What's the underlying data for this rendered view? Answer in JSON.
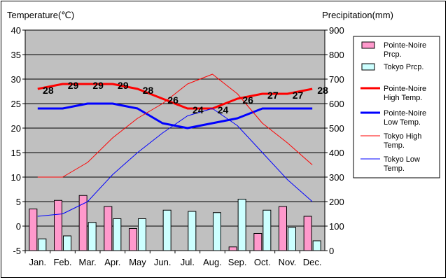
{
  "chart_data": {
    "type": "bar+line",
    "left_axis_title": "Temperature(℃)",
    "right_axis_title": "Precipitation(mm)",
    "categories": [
      "Jan.",
      "Feb.",
      "Mar.",
      "Apr.",
      "May",
      "Jun.",
      "Jul.",
      "Aug.",
      "Sep.",
      "Oct.",
      "Nov.",
      "Dec."
    ],
    "temperature_axis": {
      "min": -5,
      "max": 40,
      "ticks": [
        "-5",
        "0",
        "5",
        "10",
        "15",
        "20",
        "25",
        "30",
        "35",
        "40"
      ]
    },
    "precipitation_axis": {
      "min": 0,
      "max": 900,
      "ticks": [
        "0",
        "100",
        "200",
        "300",
        "400",
        "500",
        "600",
        "700",
        "800",
        "900"
      ]
    },
    "grid": true,
    "legend_position": "right",
    "series": [
      {
        "name": "Pointe-Noire Prcp.",
        "kind": "bar",
        "axis": "right",
        "color": "#ff99cc",
        "values": [
          170,
          205,
          225,
          180,
          90,
          0,
          0,
          0,
          15,
          70,
          180,
          140
        ]
      },
      {
        "name": "Tokyo Prcp.",
        "kind": "bar",
        "axis": "right",
        "color": "#ccffff",
        "values": [
          48,
          60,
          115,
          130,
          130,
          165,
          160,
          155,
          210,
          165,
          95,
          40
        ]
      },
      {
        "name": "Pointe-Noire High Temp.",
        "kind": "line",
        "axis": "left",
        "color": "#ff0000",
        "width": 3,
        "values": [
          28,
          29,
          29,
          29,
          28,
          26,
          24,
          24,
          26,
          27,
          27,
          28
        ]
      },
      {
        "name": "Pointe-Noire Low Temp.",
        "kind": "line",
        "axis": "left",
        "color": "#0000ff",
        "width": 3,
        "values": [
          24,
          24,
          25,
          25,
          24,
          21,
          20,
          21,
          22,
          24,
          24,
          24
        ]
      },
      {
        "name": "Tokyo High Temp.",
        "kind": "line",
        "axis": "left",
        "color": "#ff0000",
        "width": 1,
        "values": [
          10,
          10,
          13,
          18,
          22,
          25,
          29,
          31,
          27,
          21,
          17,
          12.5
        ]
      },
      {
        "name": "Tokyo Low Temp.",
        "kind": "line",
        "axis": "left",
        "color": "#0000ff",
        "width": 1,
        "values": [
          2,
          2.5,
          5,
          10.5,
          15,
          19,
          22.5,
          24,
          20.5,
          15,
          9.5,
          5
        ]
      }
    ],
    "data_labels": {
      "series": "Pointe-Noire High Temp.",
      "values": [
        "28",
        "29",
        "29",
        "29",
        "28",
        "26",
        "24",
        "24",
        "26",
        "27",
        "27",
        "28"
      ]
    },
    "legend": [
      {
        "label": "Pointe-Noire Prcp.",
        "swatch": "bar",
        "color": "#ff99cc"
      },
      {
        "label": "Tokyo Prcp.",
        "swatch": "bar",
        "color": "#ccffff"
      },
      {
        "label": "Pointe-Noire High Temp.",
        "swatch": "line",
        "color": "#ff0000",
        "width": 3
      },
      {
        "label": "Pointe-Noire Low Temp.",
        "swatch": "line",
        "color": "#0000ff",
        "width": 3
      },
      {
        "label": "Tokyo High Temp.",
        "swatch": "line",
        "color": "#ff0000",
        "width": 1
      },
      {
        "label": "Tokyo Low Temp.",
        "swatch": "line",
        "color": "#0000ff",
        "width": 1
      }
    ],
    "colors": {
      "plot_background": "#c0c0c0",
      "gridline": "#000000"
    }
  }
}
